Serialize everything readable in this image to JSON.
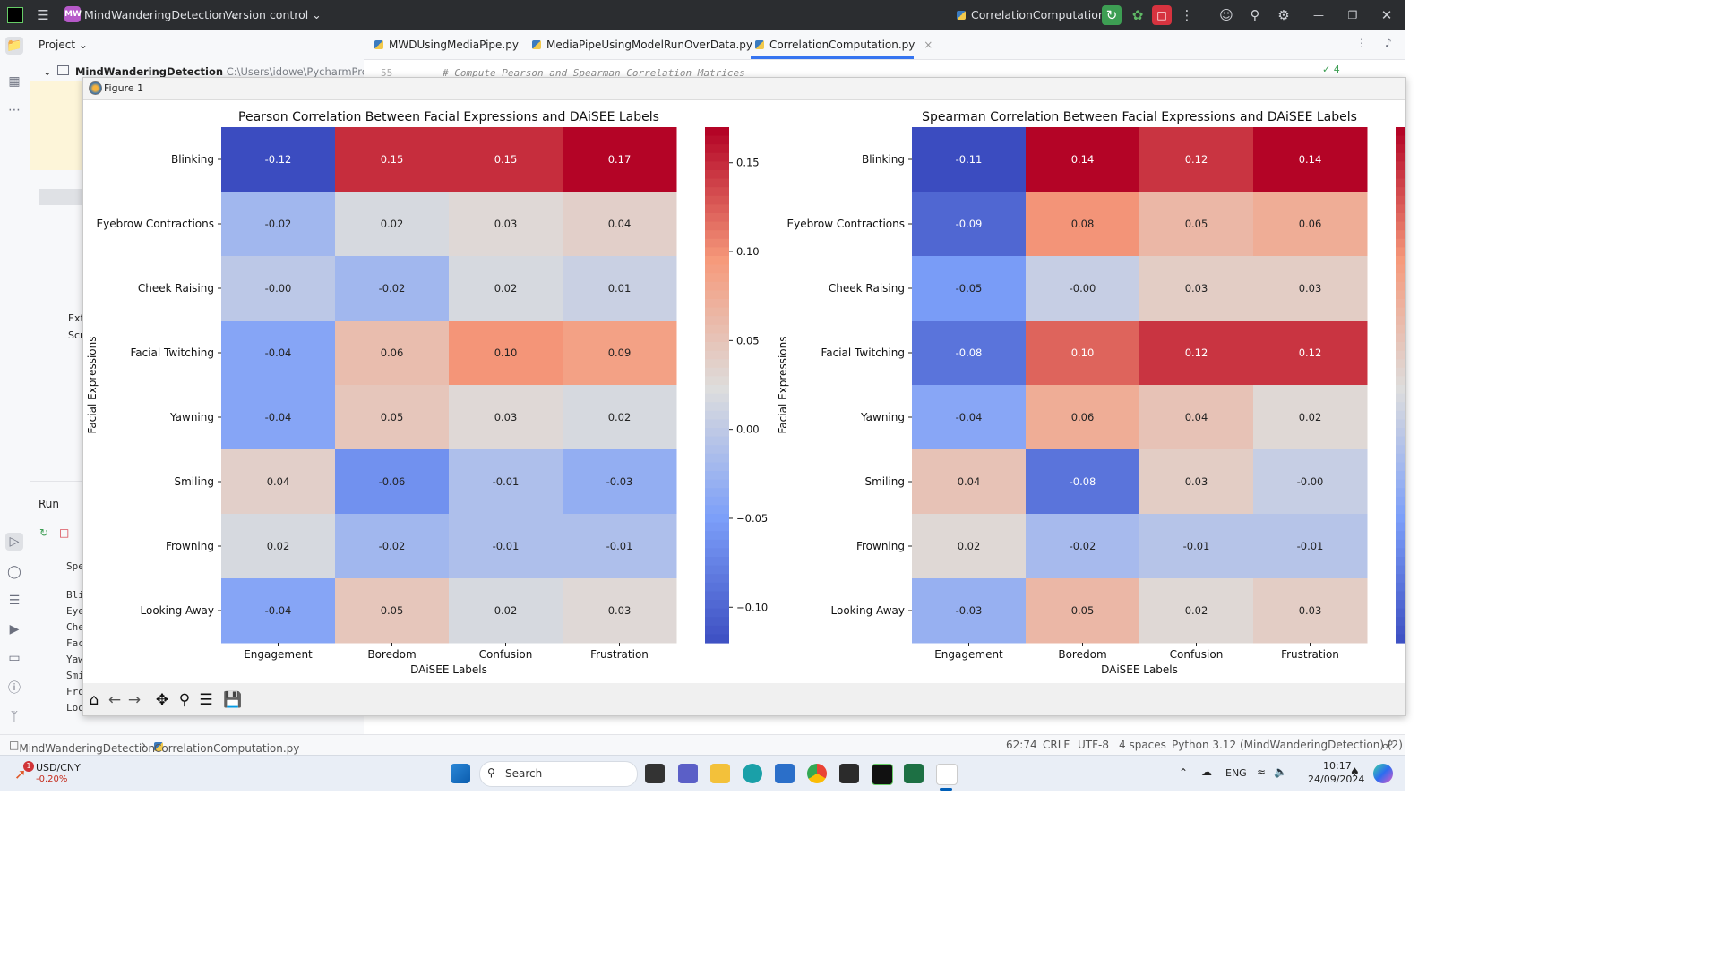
{
  "ide": {
    "project_name": "MindWanderingDetection",
    "project_badge": "MW",
    "version_control": "Version control",
    "run_config": "CorrelationComputation",
    "project_label": "Project",
    "project_root": "MindWanderingDetection",
    "project_path": "C:\\Users\\idowe\\PycharmProjects\\Mind",
    "tabs": [
      "MWDUsingMediaPipe.py",
      "MediaPipeUsingModelRunOverData.py",
      "CorrelationComputation.py"
    ],
    "line_no": "55",
    "code_comment": "# Compute Pearson and Spearman Correlation Matrices",
    "inspections": "4",
    "tree_items": [
      "Ext",
      "Scr"
    ],
    "run_label": "Run",
    "console_lines": [
      "Spe",
      "Bli",
      "Eye",
      "Che",
      "Fac",
      "Yaw",
      "Smi",
      "Fro",
      "Loo"
    ]
  },
  "figure": {
    "window_title": "Figure 1"
  },
  "status": {
    "breadcrumb_project": "MindWanderingDetection",
    "breadcrumb_file": "CorrelationComputation.py",
    "position": "62:74",
    "line_sep": "CRLF",
    "encoding": "UTF-8",
    "indent": "4 spaces",
    "interpreter": "Python 3.12 (MindWanderingDetection) (2)"
  },
  "taskbar": {
    "ticker": "USD/CNY",
    "ticker_change": "-0.20%",
    "ticker_badge": "1",
    "search_placeholder": "Search",
    "lang": "ENG",
    "time": "10:17",
    "date": "24/09/2024"
  },
  "colors": {
    "ide_dark": "#2b2d30",
    "accent_green": "#3d9e53",
    "accent_red": "#d6333f"
  },
  "chart_data": [
    {
      "type": "heatmap",
      "title": "Pearson Correlation Between Facial Expressions and DAiSEE Labels",
      "xlabel": "DAiSEE Labels",
      "ylabel": "Facial Expressions",
      "x_categories": [
        "Engagement",
        "Boredom",
        "Confusion",
        "Frustration"
      ],
      "y_categories": [
        "Blinking",
        "Eyebrow Contractions",
        "Cheek Raising",
        "Facial Twitching",
        "Yawning",
        "Smiling",
        "Frowning",
        "Looking Away"
      ],
      "values": [
        [
          -0.12,
          0.15,
          0.15,
          0.17
        ],
        [
          -0.02,
          0.02,
          0.03,
          0.04
        ],
        [
          -0.0,
          -0.02,
          0.02,
          0.01
        ],
        [
          -0.04,
          0.06,
          0.1,
          0.09
        ],
        [
          -0.04,
          0.05,
          0.03,
          0.02
        ],
        [
          0.04,
          -0.06,
          -0.01,
          -0.03
        ],
        [
          0.02,
          -0.02,
          -0.01,
          -0.01
        ],
        [
          -0.04,
          0.05,
          0.02,
          0.03
        ]
      ],
      "labels": [
        [
          "-0.12",
          "0.15",
          "0.15",
          "0.17"
        ],
        [
          "-0.02",
          "0.02",
          "0.03",
          "0.04"
        ],
        [
          "-0.00",
          "-0.02",
          "0.02",
          "0.01"
        ],
        [
          "-0.04",
          "0.06",
          "0.10",
          "0.09"
        ],
        [
          "-0.04",
          "0.05",
          "0.03",
          "0.02"
        ],
        [
          "0.04",
          "-0.06",
          "-0.01",
          "-0.03"
        ],
        [
          "0.02",
          "-0.02",
          "-0.01",
          "-0.01"
        ],
        [
          "-0.04",
          "0.05",
          "0.02",
          "0.03"
        ]
      ],
      "colormap": "coolwarm",
      "vmin": -0.12,
      "vmax": 0.17,
      "colorbar_ticks": [
        0.15,
        0.1,
        0.05,
        0.0,
        -0.05,
        -0.1
      ],
      "colorbar_tick_labels": [
        "0.15",
        "0.10",
        "0.05",
        "0.00",
        "−0.05",
        "−0.10"
      ]
    },
    {
      "type": "heatmap",
      "title": "Spearman Correlation Between Facial Expressions and DAiSEE Labels",
      "xlabel": "DAiSEE Labels",
      "ylabel": "Facial Expressions",
      "x_categories": [
        "Engagement",
        "Boredom",
        "Confusion",
        "Frustration"
      ],
      "y_categories": [
        "Blinking",
        "Eyebrow Contractions",
        "Cheek Raising",
        "Facial Twitching",
        "Yawning",
        "Smiling",
        "Frowning",
        "Looking Away"
      ],
      "values": [
        [
          -0.11,
          0.14,
          0.12,
          0.14
        ],
        [
          -0.09,
          0.08,
          0.05,
          0.06
        ],
        [
          -0.05,
          -0.0,
          0.03,
          0.03
        ],
        [
          -0.08,
          0.1,
          0.12,
          0.12
        ],
        [
          -0.04,
          0.06,
          0.04,
          0.02
        ],
        [
          0.04,
          -0.08,
          0.03,
          -0.0
        ],
        [
          0.02,
          -0.02,
          -0.01,
          -0.01
        ],
        [
          -0.03,
          0.05,
          0.02,
          0.03
        ]
      ],
      "labels": [
        [
          "-0.11",
          "0.14",
          "0.12",
          "0.14"
        ],
        [
          "-0.09",
          "0.08",
          "0.05",
          "0.06"
        ],
        [
          "-0.05",
          "-0.00",
          "0.03",
          "0.03"
        ],
        [
          "-0.08",
          "0.10",
          "0.12",
          "0.12"
        ],
        [
          "-0.04",
          "0.06",
          "0.04",
          "0.02"
        ],
        [
          "0.04",
          "-0.08",
          "0.03",
          "-0.00"
        ],
        [
          "0.02",
          "-0.02",
          "-0.01",
          "-0.01"
        ],
        [
          "-0.03",
          "0.05",
          "0.02",
          "0.03"
        ]
      ],
      "colormap": "coolwarm",
      "vmin": -0.11,
      "vmax": 0.14
    }
  ]
}
